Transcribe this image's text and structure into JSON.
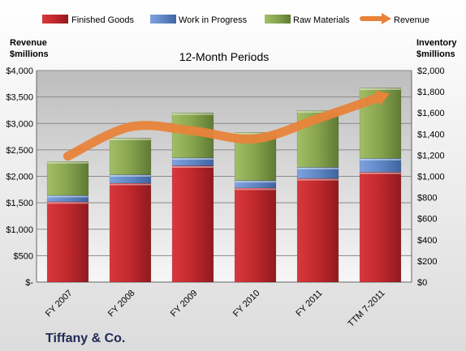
{
  "chart_data": {
    "type": "bar",
    "stacked": true,
    "title": "12-Month Periods",
    "categories": [
      "FY 2007",
      "FY 2008",
      "FY 2009",
      "FY 2010",
      "FY 2011",
      "TTM 7-2011"
    ],
    "series": [
      {
        "name": "Finished Goods",
        "axis": "right",
        "color": "#c0282d",
        "values": [
          760,
          935,
          1100,
          890,
          980,
          1040
        ]
      },
      {
        "name": "Work in Progress",
        "axis": "right",
        "color": "#5f87c6",
        "values": [
          60,
          80,
          75,
          70,
          105,
          130
        ]
      },
      {
        "name": "Raw Materials",
        "axis": "right",
        "color": "#86a34e",
        "values": [
          320,
          345,
          425,
          455,
          535,
          665
        ]
      },
      {
        "name": "Revenue",
        "type": "line",
        "axis": "left",
        "color": "#e8833a",
        "values": [
          2380,
          2935,
          2860,
          2710,
          3090,
          3500
        ]
      }
    ],
    "y_left": {
      "label_line1": "Revenue",
      "label_line2": "$millions",
      "ylim": [
        0,
        4000
      ],
      "ticks": [
        0,
        500,
        1000,
        1500,
        2000,
        2500,
        3000,
        3500,
        4000
      ],
      "tick_labels": [
        "$-",
        "$500",
        "$1,000",
        "$1,500",
        "$2,000",
        "$2,500",
        "$3,000",
        "$3,500",
        "$4,000"
      ]
    },
    "y_right": {
      "label_line1": "Inventory",
      "label_line2": "$millions",
      "ylim": [
        0,
        2000
      ],
      "ticks": [
        0,
        200,
        400,
        600,
        800,
        1000,
        1200,
        1400,
        1600,
        1800,
        2000
      ],
      "tick_labels": [
        "$0",
        "$200",
        "$400",
        "$600",
        "$800",
        "$1,000",
        "$1,200",
        "$1,400",
        "$1,600",
        "$1,800",
        "$2,000"
      ]
    },
    "legend_position": "top",
    "grid": true
  },
  "footer": {
    "company": "Tiffany & Co."
  }
}
